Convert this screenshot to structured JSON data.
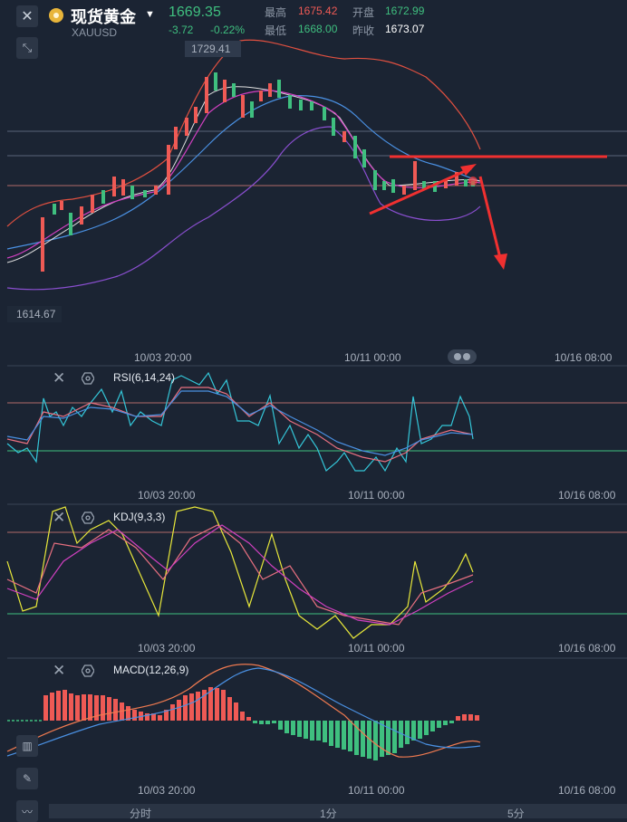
{
  "header": {
    "title": "现货黄金",
    "symbol": "XAUUSD",
    "price": "1669.35",
    "change": "-3.72",
    "change_pct": "-0.22%",
    "high_label": "最高",
    "high": "1675.42",
    "open_label": "开盘",
    "open": "1672.99",
    "low_label": "最低",
    "low": "1668.00",
    "prev_label": "昨收",
    "prev_close": "1673.07"
  },
  "colors": {
    "up": "#ef5a55",
    "down": "#3fbf7f",
    "background": "#1b2433"
  },
  "main_chart": {
    "max_label": "1729.41",
    "min_label": "1614.67",
    "x_ticks": [
      "10/03 20:00",
      "10/11 00:00",
      "10/16 08:00"
    ]
  },
  "rsi": {
    "label": "RSI(6,14,24)",
    "x_ticks": [
      "10/03 20:00",
      "10/11 00:00",
      "10/16 08:00"
    ]
  },
  "kdj": {
    "label": "KDJ(9,3,3)",
    "x_ticks": [
      "10/03 20:00",
      "10/11 00:00",
      "10/16 08:00"
    ]
  },
  "macd": {
    "label": "MACD(12,26,9)",
    "x_ticks": [
      "10/03 20:00",
      "10/11 00:00",
      "10/16 08:00"
    ]
  },
  "periods": [
    "分时",
    "1分",
    "5分"
  ],
  "icons": [
    "close-icon",
    "shrink-icon",
    "gold-coin-icon",
    "settings-hex-icon",
    "pencil-icon",
    "indicator-icon"
  ]
}
